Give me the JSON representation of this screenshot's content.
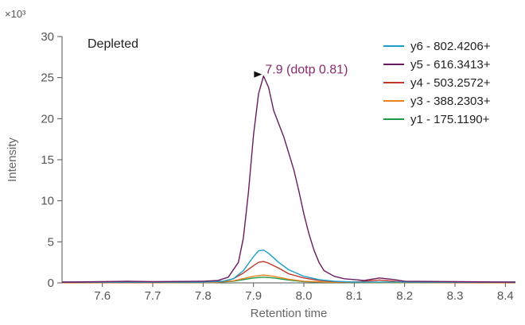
{
  "chart_data": {
    "type": "line",
    "xlabel": "Retention time",
    "ylabel": "Intensity",
    "y_exponent_label": "×10³",
    "panel_label": "Depleted",
    "xlim": [
      7.52,
      8.42
    ],
    "ylim": [
      0,
      30
    ],
    "x_ticks": [
      "7.6",
      "7.7",
      "7.8",
      "7.9",
      "8.0",
      "8.1",
      "8.2",
      "8.3",
      "8.4"
    ],
    "y_ticks": [
      "0",
      "5",
      "10",
      "15",
      "20",
      "25",
      "30"
    ],
    "legend_position": "top-right",
    "annotation": {
      "text": "7.9 (dotp 0.81)",
      "x": 7.92,
      "y": 25.2,
      "color": "#8b2a6f"
    },
    "series": [
      {
        "name": "y6 - 802.4206+",
        "color": "#1aa0c8",
        "points": [
          [
            7.52,
            0.1
          ],
          [
            7.6,
            0.1
          ],
          [
            7.7,
            0.1
          ],
          [
            7.8,
            0.1
          ],
          [
            7.84,
            0.2
          ],
          [
            7.86,
            0.5
          ],
          [
            7.88,
            1.5
          ],
          [
            7.9,
            3.2
          ],
          [
            7.91,
            3.9
          ],
          [
            7.92,
            4.0
          ],
          [
            7.93,
            3.6
          ],
          [
            7.95,
            2.5
          ],
          [
            7.97,
            1.6
          ],
          [
            8.0,
            0.8
          ],
          [
            8.03,
            0.4
          ],
          [
            8.06,
            0.2
          ],
          [
            8.1,
            0.1
          ],
          [
            8.2,
            0.1
          ],
          [
            8.3,
            0.1
          ],
          [
            8.42,
            0.1
          ]
        ]
      },
      {
        "name": "y5 - 616.3413+",
        "color": "#6a1b5f",
        "points": [
          [
            7.52,
            0.1
          ],
          [
            7.6,
            0.15
          ],
          [
            7.65,
            0.2
          ],
          [
            7.7,
            0.15
          ],
          [
            7.8,
            0.2
          ],
          [
            7.83,
            0.3
          ],
          [
            7.85,
            0.7
          ],
          [
            7.87,
            2.5
          ],
          [
            7.88,
            5.5
          ],
          [
            7.89,
            11
          ],
          [
            7.9,
            18
          ],
          [
            7.91,
            23
          ],
          [
            7.92,
            25.2
          ],
          [
            7.93,
            23.8
          ],
          [
            7.94,
            21
          ],
          [
            7.95,
            19.4
          ],
          [
            7.96,
            17.8
          ],
          [
            7.97,
            15.8
          ],
          [
            7.98,
            13.8
          ],
          [
            7.99,
            11.2
          ],
          [
            8.0,
            8.4
          ],
          [
            8.01,
            6.0
          ],
          [
            8.02,
            4.0
          ],
          [
            8.03,
            2.5
          ],
          [
            8.04,
            1.5
          ],
          [
            8.06,
            0.8
          ],
          [
            8.08,
            0.5
          ],
          [
            8.12,
            0.3
          ],
          [
            8.15,
            0.6
          ],
          [
            8.18,
            0.4
          ],
          [
            8.2,
            0.2
          ],
          [
            8.3,
            0.15
          ],
          [
            8.42,
            0.1
          ]
        ]
      },
      {
        "name": "y4 - 503.2572+",
        "color": "#c0392b",
        "points": [
          [
            7.52,
            0.05
          ],
          [
            7.6,
            0.05
          ],
          [
            7.7,
            0.05
          ],
          [
            7.8,
            0.1
          ],
          [
            7.84,
            0.2
          ],
          [
            7.86,
            0.5
          ],
          [
            7.88,
            1.2
          ],
          [
            7.9,
            2.1
          ],
          [
            7.91,
            2.5
          ],
          [
            7.92,
            2.6
          ],
          [
            7.93,
            2.4
          ],
          [
            7.95,
            1.8
          ],
          [
            7.97,
            1.1
          ],
          [
            8.0,
            0.6
          ],
          [
            8.03,
            0.3
          ],
          [
            8.06,
            0.15
          ],
          [
            8.1,
            0.1
          ],
          [
            8.15,
            0.35
          ],
          [
            8.2,
            0.1
          ],
          [
            8.3,
            0.05
          ],
          [
            8.42,
            0.05
          ]
        ]
      },
      {
        "name": "y3 - 388.2303+",
        "color": "#e8821e",
        "points": [
          [
            7.52,
            0.02
          ],
          [
            7.7,
            0.02
          ],
          [
            7.82,
            0.05
          ],
          [
            7.86,
            0.25
          ],
          [
            7.9,
            0.8
          ],
          [
            7.92,
            0.95
          ],
          [
            7.94,
            0.8
          ],
          [
            7.97,
            0.45
          ],
          [
            8.0,
            0.2
          ],
          [
            8.05,
            0.08
          ],
          [
            8.15,
            0.05
          ],
          [
            8.42,
            0.02
          ]
        ]
      },
      {
        "name": "y1 - 175.1190+",
        "color": "#1e9a4b",
        "points": [
          [
            7.52,
            0.02
          ],
          [
            7.7,
            0.02
          ],
          [
            7.82,
            0.05
          ],
          [
            7.86,
            0.2
          ],
          [
            7.9,
            0.6
          ],
          [
            7.92,
            0.7
          ],
          [
            7.94,
            0.6
          ],
          [
            7.97,
            0.35
          ],
          [
            8.0,
            0.15
          ],
          [
            8.05,
            0.06
          ],
          [
            8.15,
            0.04
          ],
          [
            8.42,
            0.02
          ]
        ]
      }
    ]
  }
}
